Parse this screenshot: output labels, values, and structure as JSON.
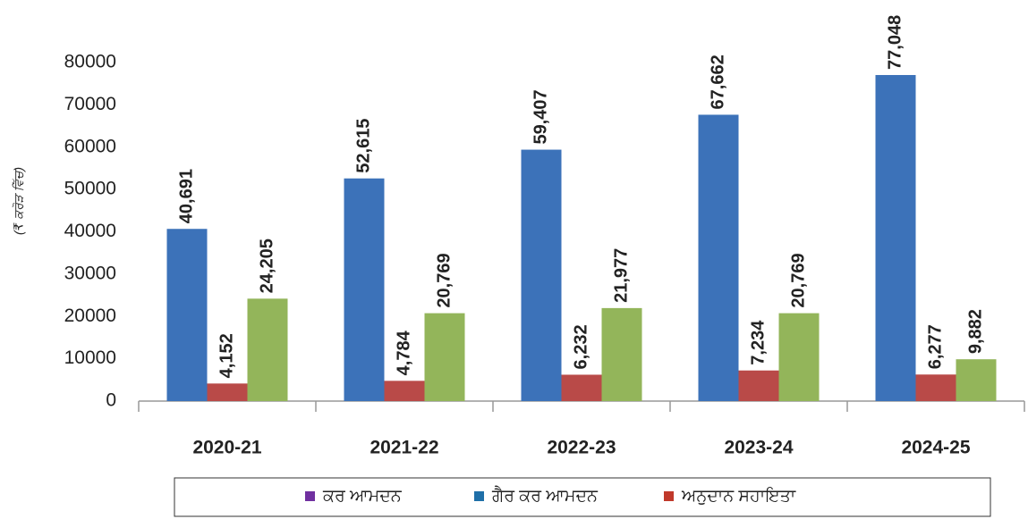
{
  "chart_data": {
    "type": "bar",
    "y_axis_label": "(₹ ਕਰੋੜ ਵਿੱਚ)",
    "categories": [
      "2020-21",
      "2021-22",
      "2022-23",
      "2023-24",
      "2024-25"
    ],
    "series": [
      {
        "name": "ਕਰ ਆਮਦਨ",
        "legend_color": "#7030a0",
        "color": "#3c72b9",
        "values": [
          40691,
          52615,
          59407,
          67662,
          77048
        ],
        "value_labels": [
          "40,691",
          "52,615",
          "59,407",
          "67,662",
          "77,048"
        ]
      },
      {
        "name": "ਗੈਰ ਕਰ ਆਮਦਨ",
        "legend_color": "#1f6fa8",
        "color": "#b94a48",
        "values": [
          4152,
          4784,
          6232,
          7234,
          6277
        ],
        "value_labels": [
          "4,152",
          "4,784",
          "6,232",
          "7,234",
          "6,277"
        ]
      },
      {
        "name": "ਅਨੁਦਾਨ ਸਹਾਇਤਾ",
        "legend_color": "#c0392b",
        "color": "#93b55a",
        "values": [
          24205,
          20769,
          21977,
          20769,
          9882
        ],
        "value_labels": [
          "24,205",
          "20,769",
          "21,977",
          "20,769",
          "9,882"
        ]
      }
    ],
    "ylim": [
      0,
      80000
    ],
    "yticks": [
      0,
      10000,
      20000,
      30000,
      40000,
      50000,
      60000,
      70000,
      80000
    ],
    "grid": false
  }
}
